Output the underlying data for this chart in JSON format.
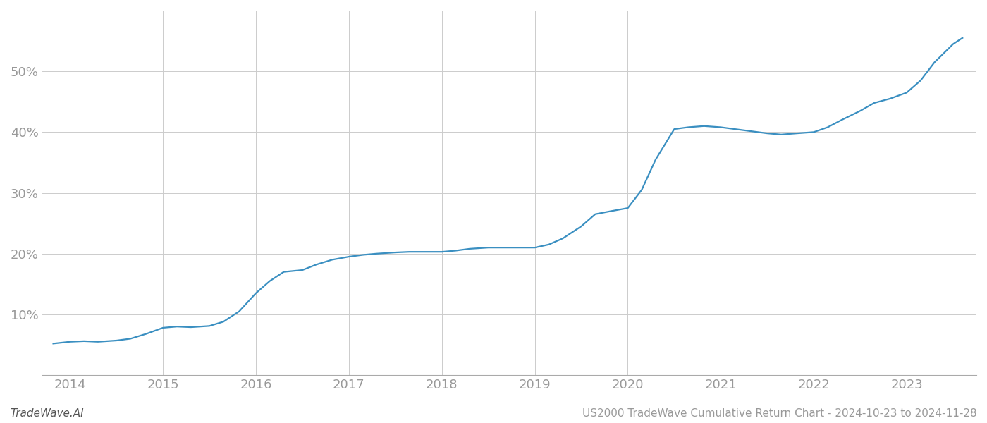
{
  "title": "",
  "footer_left": "TradeWave.AI",
  "footer_right": "US2000 TradeWave Cumulative Return Chart - 2024-10-23 to 2024-11-28",
  "line_color": "#3a8fc1",
  "line_width": 1.6,
  "background_color": "#ffffff",
  "grid_color": "#cccccc",
  "x_values": [
    2013.82,
    2014.0,
    2014.15,
    2014.3,
    2014.5,
    2014.65,
    2014.82,
    2015.0,
    2015.15,
    2015.3,
    2015.5,
    2015.65,
    2015.82,
    2016.0,
    2016.15,
    2016.3,
    2016.5,
    2016.65,
    2016.82,
    2017.0,
    2017.15,
    2017.3,
    2017.5,
    2017.65,
    2017.82,
    2018.0,
    2018.15,
    2018.3,
    2018.5,
    2018.65,
    2018.82,
    2019.0,
    2019.15,
    2019.3,
    2019.5,
    2019.65,
    2019.82,
    2020.0,
    2020.15,
    2020.3,
    2020.5,
    2020.65,
    2020.82,
    2021.0,
    2021.15,
    2021.3,
    2021.5,
    2021.65,
    2021.82,
    2022.0,
    2022.15,
    2022.3,
    2022.5,
    2022.65,
    2022.82,
    2023.0,
    2023.15,
    2023.3,
    2023.5,
    2023.6
  ],
  "y_values": [
    5.2,
    5.5,
    5.6,
    5.5,
    5.7,
    6.0,
    6.8,
    7.8,
    8.0,
    7.9,
    8.1,
    8.8,
    10.5,
    13.5,
    15.5,
    17.0,
    17.3,
    18.2,
    19.0,
    19.5,
    19.8,
    20.0,
    20.2,
    20.3,
    20.3,
    20.3,
    20.5,
    20.8,
    21.0,
    21.0,
    21.0,
    21.0,
    21.5,
    22.5,
    24.5,
    26.5,
    27.0,
    27.5,
    30.5,
    35.5,
    40.5,
    40.8,
    41.0,
    40.8,
    40.5,
    40.2,
    39.8,
    39.6,
    39.8,
    40.0,
    40.8,
    42.0,
    43.5,
    44.8,
    45.5,
    46.5,
    48.5,
    51.5,
    54.5,
    55.5
  ],
  "xlim": [
    2013.7,
    2023.75
  ],
  "ylim": [
    0,
    60
  ],
  "yticks": [
    10,
    20,
    30,
    40,
    50
  ],
  "xticks": [
    2014,
    2015,
    2016,
    2017,
    2018,
    2019,
    2020,
    2021,
    2022,
    2023
  ],
  "tick_label_color": "#999999",
  "tick_label_fontsize": 13,
  "footer_fontsize": 11,
  "footer_left_color": "#555555",
  "footer_right_color": "#999999"
}
